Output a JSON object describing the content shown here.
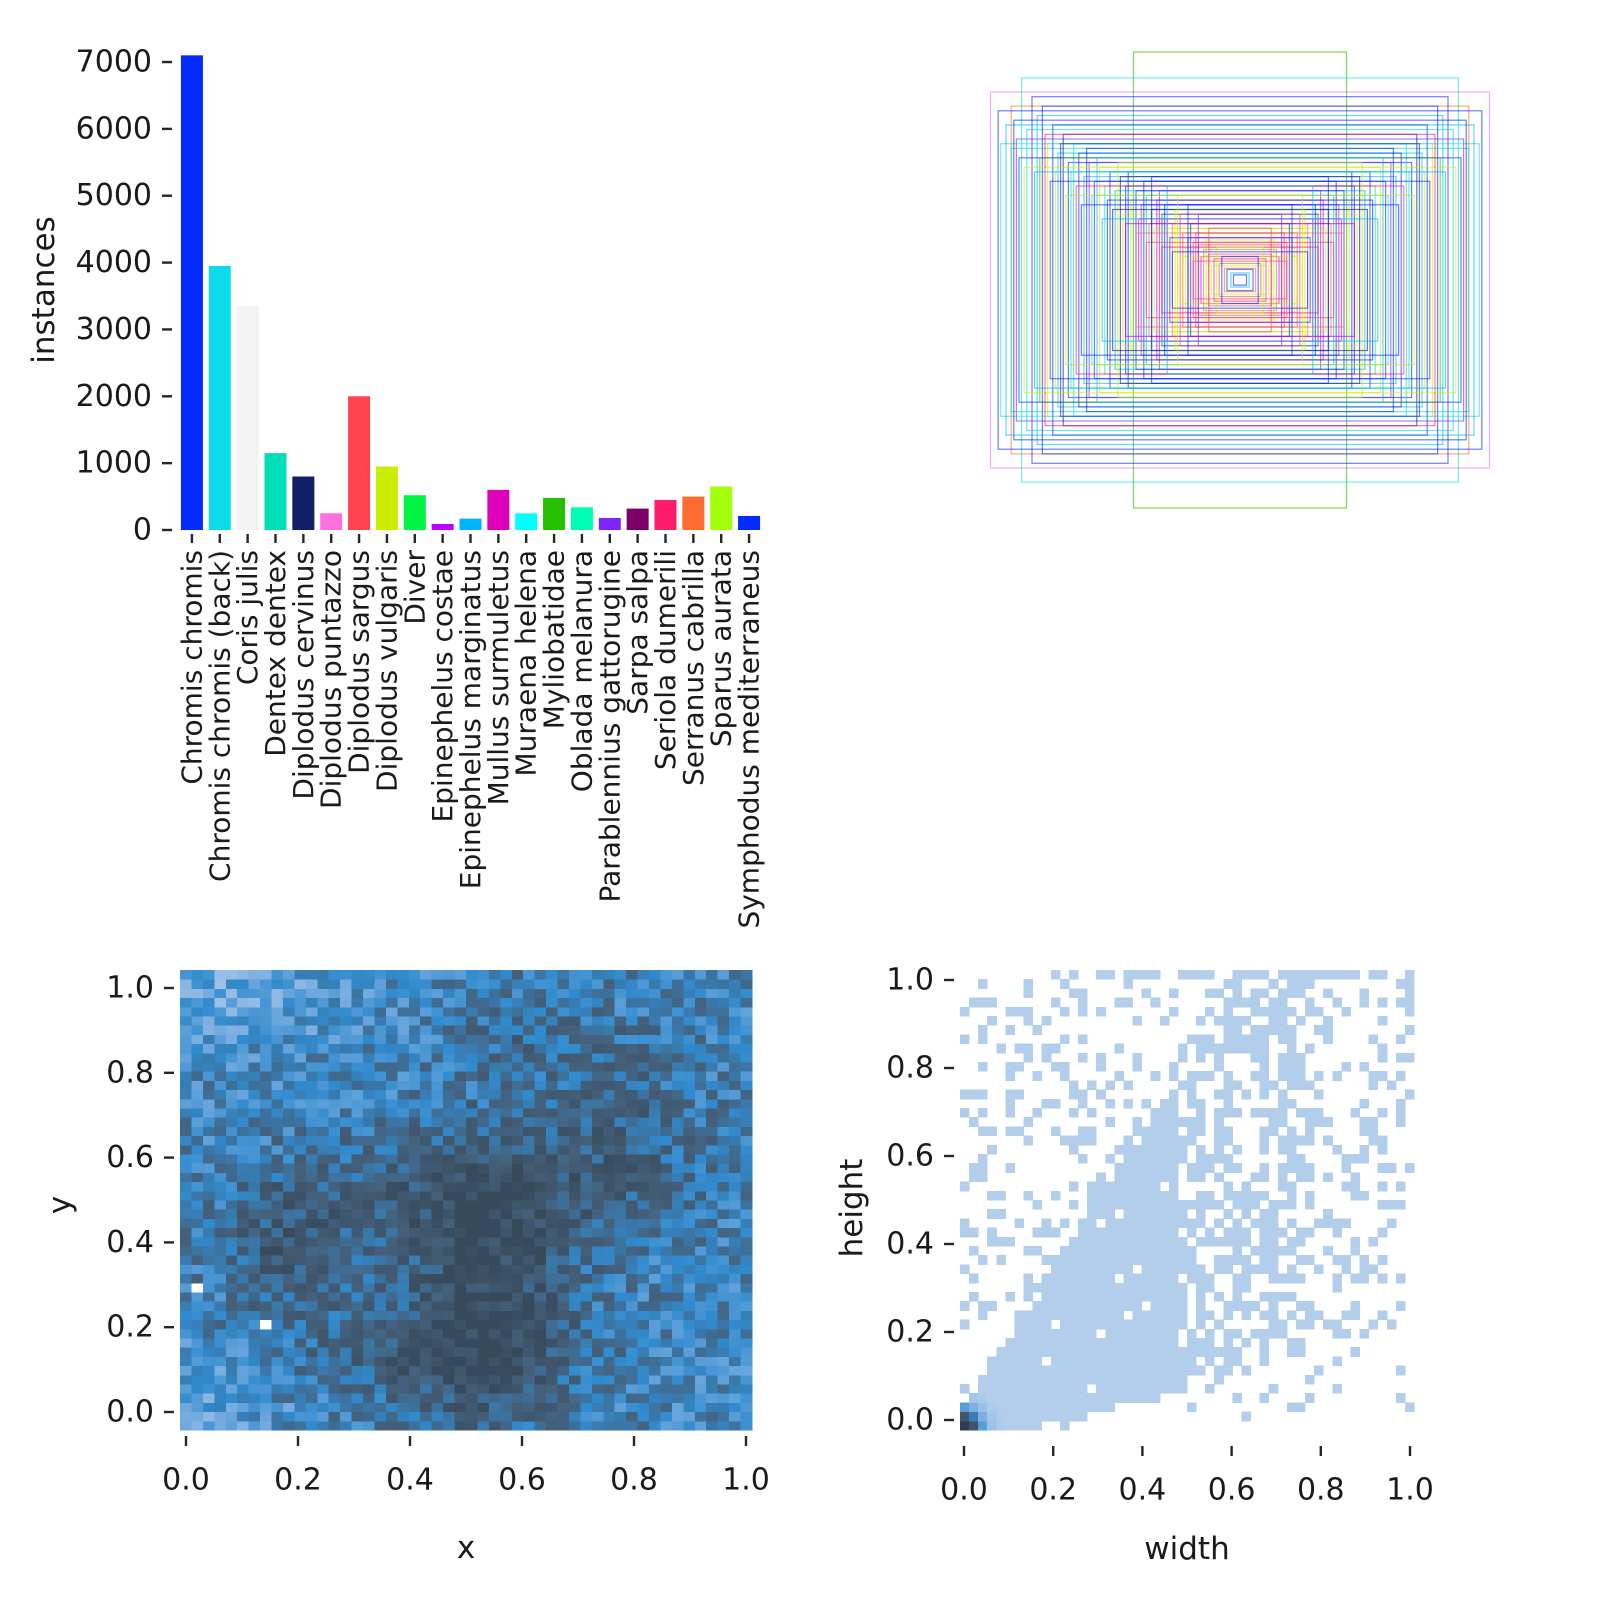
{
  "chart_data": [
    {
      "type": "bar",
      "name": "instances-per-class",
      "ylabel": "instances",
      "yticks": [
        0,
        1000,
        2000,
        3000,
        4000,
        5000,
        6000,
        7000
      ],
      "ylim": [
        0,
        7150
      ],
      "categories": [
        "Chromis chromis",
        "Chromis chromis (back)",
        "Coris julis",
        "Dentex dentex",
        "Diplodus cervinus",
        "Diplodus puntazzo",
        "Diplodus sargus",
        "Diplodus vulgaris",
        "Diver",
        "Epinephelus costae",
        "Epinephelus marginatus",
        "Mullus surmuletus",
        "Muraena helena",
        "Myliobatidae",
        "Oblada melanura",
        "Parablennius gattorugine",
        "Sarpa salpa",
        "Seriola dumerili",
        "Serranus cabrilla",
        "Sparus aurata",
        "Symphodus mediterraneus"
      ],
      "values": [
        7100,
        3950,
        3350,
        1150,
        800,
        250,
        2000,
        950,
        520,
        90,
        170,
        600,
        250,
        480,
        340,
        180,
        320,
        450,
        500,
        650,
        210
      ],
      "colors": [
        "#042AFF",
        "#0BDBEB",
        "#F3F3F3",
        "#00DFB7",
        "#111F68",
        "#FF6FDD",
        "#FF444F",
        "#CCED00",
        "#00F344",
        "#BD00FF",
        "#00B4FF",
        "#DD00BA",
        "#00FFFF",
        "#26C000",
        "#01FFB3",
        "#7D24FF",
        "#7B0068",
        "#FF1B6C",
        "#FC6D2F",
        "#A2FF0B",
        "#042AFF"
      ],
      "grid": false,
      "legend": "none"
    },
    {
      "type": "boxes",
      "name": "bounding-box-overlay",
      "description": "all dataset bounding boxes drawn concentric at image center, colored by class",
      "opacity": 0.6,
      "line_width": 1.2,
      "palette": [
        "#042AFF",
        "#0BDBEB",
        "#00DFB7",
        "#111F68",
        "#FF6FDD",
        "#FF444F",
        "#CCED00",
        "#00F344",
        "#BD00FF",
        "#00B4FF",
        "#DD00BA",
        "#00FFFF",
        "#26C000",
        "#01FFB3",
        "#7D24FF",
        "#7B0068",
        "#FF1B6C",
        "#FC6D2F",
        "#A2FF0B"
      ],
      "boxes": [
        [
          0.96,
          0.8,
          4
        ],
        [
          0.41,
          0.97,
          12
        ],
        [
          0.88,
          0.74,
          17
        ],
        [
          0.84,
          0.86,
          1
        ],
        [
          0.9,
          0.66,
          9
        ],
        [
          0.93,
          0.72,
          0
        ],
        [
          0.8,
          0.78,
          0
        ],
        [
          0.86,
          0.6,
          14
        ],
        [
          0.78,
          0.7,
          9
        ],
        [
          0.82,
          0.64,
          1
        ],
        [
          0.76,
          0.74,
          0
        ],
        [
          0.74,
          0.58,
          6
        ],
        [
          0.88,
          0.56,
          2
        ],
        [
          0.72,
          0.66,
          0
        ],
        [
          0.7,
          0.54,
          9
        ],
        [
          0.68,
          0.62,
          3
        ],
        [
          0.66,
          0.5,
          0
        ],
        [
          0.64,
          0.58,
          1
        ],
        [
          0.71,
          0.46,
          6
        ],
        [
          0.62,
          0.54,
          0
        ],
        [
          0.6,
          0.44,
          9
        ],
        [
          0.58,
          0.5,
          14
        ],
        [
          0.56,
          0.42,
          0
        ],
        [
          0.54,
          0.48,
          6
        ],
        [
          0.52,
          0.4,
          2
        ],
        [
          0.5,
          0.46,
          0
        ],
        [
          0.48,
          0.38,
          9
        ],
        [
          0.46,
          0.44,
          3
        ],
        [
          0.57,
          0.36,
          1
        ],
        [
          0.44,
          0.4,
          0
        ],
        [
          0.42,
          0.34,
          6
        ],
        [
          0.4,
          0.38,
          0
        ],
        [
          0.38,
          0.32,
          14
        ],
        [
          0.36,
          0.36,
          9
        ],
        [
          0.34,
          0.3,
          0
        ],
        [
          0.45,
          0.28,
          6
        ],
        [
          0.32,
          0.34,
          10
        ],
        [
          0.3,
          0.28,
          0
        ],
        [
          0.28,
          0.26,
          16
        ],
        [
          0.35,
          0.24,
          5
        ],
        [
          0.26,
          0.24,
          17
        ],
        [
          0.24,
          0.22,
          6
        ],
        [
          0.22,
          0.2,
          5
        ],
        [
          0.27,
          0.18,
          0
        ],
        [
          0.2,
          0.18,
          10
        ],
        [
          0.18,
          0.16,
          16
        ],
        [
          0.16,
          0.15,
          5
        ],
        [
          0.21,
          0.14,
          6
        ],
        [
          0.14,
          0.13,
          17
        ],
        [
          0.12,
          0.11,
          5
        ],
        [
          0.15,
          0.1,
          8
        ],
        [
          0.1,
          0.09,
          16
        ],
        [
          0.08,
          0.07,
          5
        ],
        [
          0.11,
          0.06,
          6
        ],
        [
          0.06,
          0.05,
          17
        ],
        [
          0.05,
          0.045,
          0
        ],
        [
          0.035,
          0.03,
          9
        ],
        [
          0.025,
          0.022,
          0
        ],
        [
          0.92,
          0.58,
          1
        ],
        [
          0.85,
          0.52,
          0
        ],
        [
          0.77,
          0.52,
          12
        ],
        [
          0.69,
          0.58,
          0
        ],
        [
          0.63,
          0.4,
          16
        ],
        [
          0.59,
          0.56,
          0
        ],
        [
          0.55,
          0.52,
          9
        ],
        [
          0.51,
          0.34,
          0
        ],
        [
          0.47,
          0.5,
          6
        ],
        [
          0.43,
          0.46,
          0
        ],
        [
          0.39,
          0.26,
          10
        ],
        [
          0.37,
          0.42,
          0
        ],
        [
          0.33,
          0.22,
          6
        ],
        [
          0.31,
          0.38,
          14
        ],
        [
          0.29,
          0.32,
          0
        ],
        [
          0.25,
          0.3,
          6
        ],
        [
          0.23,
          0.28,
          5
        ],
        [
          0.19,
          0.24,
          0
        ],
        [
          0.17,
          0.2,
          16
        ],
        [
          0.13,
          0.17,
          6
        ],
        [
          0.49,
          0.3,
          3
        ],
        [
          0.53,
          0.26,
          9
        ],
        [
          0.61,
          0.32,
          0
        ],
        [
          0.67,
          0.36,
          6
        ],
        [
          0.73,
          0.42,
          0
        ],
        [
          0.79,
          0.46,
          9
        ],
        [
          0.83,
          0.48,
          6
        ],
        [
          0.87,
          0.68,
          0
        ],
        [
          0.75,
          0.62,
          16
        ],
        [
          0.65,
          0.46,
          2
        ],
        [
          0.44,
          0.24,
          8
        ],
        [
          0.4,
          0.2,
          17
        ],
        [
          0.36,
          0.16,
          5
        ],
        [
          0.3,
          0.14,
          10
        ],
        [
          0.26,
          0.12,
          0
        ],
        [
          0.22,
          0.1,
          6
        ],
        [
          0.18,
          0.08,
          5
        ],
        [
          0.34,
          0.44,
          0
        ],
        [
          0.28,
          0.4,
          9
        ],
        [
          0.24,
          0.36,
          6
        ],
        [
          0.2,
          0.32,
          0
        ],
        [
          0.16,
          0.28,
          14
        ],
        [
          0.12,
          0.22,
          5
        ],
        [
          0.09,
          0.14,
          6
        ],
        [
          0.07,
          0.1,
          0
        ]
      ]
    },
    {
      "type": "heatmap",
      "name": "xy-position-histogram",
      "xlabel": "x",
      "ylabel": "y",
      "xticks": [
        "0.0",
        "0.2",
        "0.4",
        "0.6",
        "0.8",
        "1.0"
      ],
      "yticks": [
        "0.0",
        "0.2",
        "0.4",
        "0.6",
        "0.8",
        "1.0"
      ],
      "bins": 50,
      "seed": 42,
      "base": 0.38,
      "noise": 0.3,
      "colormap": [
        [
          0,
          "#ffffff"
        ],
        [
          0.18,
          "#aecbe9"
        ],
        [
          0.35,
          "#79ade0"
        ],
        [
          0.52,
          "#318bce"
        ],
        [
          0.7,
          "#44607b"
        ],
        [
          0.85,
          "#3b5064"
        ],
        [
          1,
          "#2f3e4c"
        ]
      ],
      "hotspots": [
        [
          0.54,
          0.28,
          0.3,
          0.1,
          0.22
        ],
        [
          0.5,
          0.52,
          0.18,
          0.18,
          0.1
        ],
        [
          0.19,
          0.4,
          0.22,
          0.09,
          0.12
        ],
        [
          0.78,
          0.62,
          0.15,
          0.1,
          0.15
        ],
        [
          0.42,
          0.16,
          0.15,
          0.15,
          0.08
        ],
        [
          0.62,
          0.85,
          0.1,
          0.12,
          0.08
        ],
        [
          0.08,
          0.95,
          -0.15,
          0.15,
          0.08
        ],
        [
          0.05,
          0.05,
          -0.1,
          0.1,
          0.1
        ]
      ],
      "zero_cells": [
        [
          1,
          15
        ],
        [
          7,
          11
        ]
      ]
    },
    {
      "type": "heatmap",
      "name": "width-height-histogram",
      "xlabel": "width",
      "ylabel": "height",
      "xticks": [
        "0.0",
        "0.2",
        "0.4",
        "0.6",
        "0.8",
        "1.0"
      ],
      "yticks": [
        "0.0",
        "0.2",
        "0.4",
        "0.6",
        "0.8",
        "1.0"
      ],
      "bins": 50,
      "seed": 7,
      "cell_t": 0.17,
      "origin_peak": {
        "amp": 1.1,
        "sigma2": 0.0009
      },
      "density_rules": {
        "core_p": 0.97,
        "mid_p": 0.55,
        "scatter_p": 0.22,
        "sparse_p": 0.07,
        "top_row_p": 0.55,
        "right_col_p": 0.6
      },
      "colormap": [
        [
          0,
          "#ffffff"
        ],
        [
          0.18,
          "#aecbe9"
        ],
        [
          0.35,
          "#79ade0"
        ],
        [
          0.52,
          "#318bce"
        ],
        [
          0.7,
          "#44607b"
        ],
        [
          0.85,
          "#3b5064"
        ],
        [
          1,
          "#2f3e4c"
        ]
      ]
    }
  ]
}
